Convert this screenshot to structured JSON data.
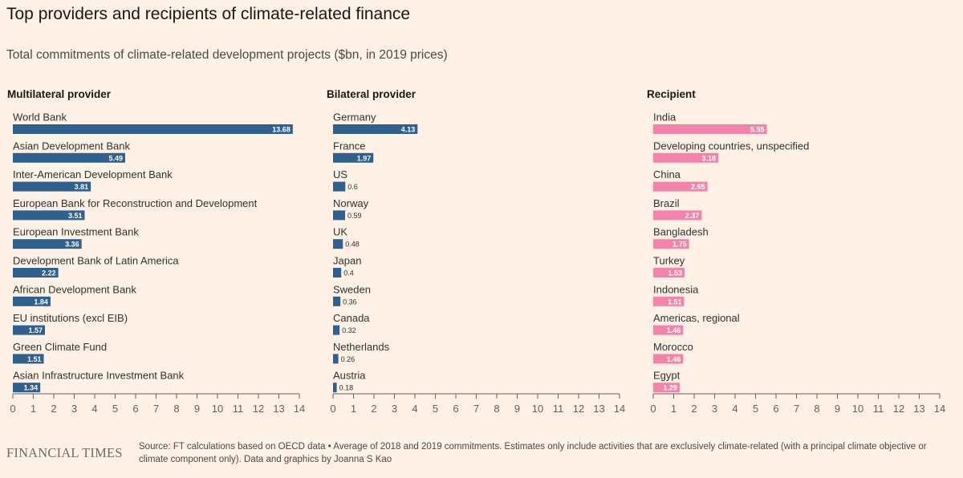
{
  "title": "Top providers and recipients of climate-related finance",
  "subtitle": "Total commitments of climate-related development projects ($bn, in 2019 prices)",
  "logo": "FINANCIAL TIMES",
  "source": "Source: FT calculations based on OECD data • Average of 2018 and 2019 commitments. Estimates only include activities that are exclusively climate-related (with a principal climate objective or climate component only). Data and graphics by Joanna S Kao",
  "chart_data": [
    {
      "type": "bar",
      "orientation": "horizontal",
      "title": "Multilateral provider",
      "color": "#30618e",
      "xlim": [
        0,
        14
      ],
      "xticks": [
        0,
        1,
        2,
        3,
        4,
        5,
        6,
        7,
        8,
        9,
        10,
        11,
        12,
        13,
        14
      ],
      "categories": [
        "World Bank",
        "Asian Development Bank",
        "Inter-American Development Bank",
        "European Bank for Reconstruction and Development",
        "European Investment Bank",
        "Development Bank of Latin America",
        "African Development Bank",
        "EU institutions (excl EIB)",
        "Green Climate Fund",
        "Asian Infrastructure Investment Bank"
      ],
      "values": [
        13.68,
        5.49,
        3.81,
        3.51,
        3.36,
        2.22,
        1.84,
        1.57,
        1.51,
        1.34
      ],
      "labels": [
        "13.68",
        "5.49",
        "3.81",
        "3.51",
        "3.36",
        "2.22",
        "1.84",
        "1.57",
        "1.51",
        "1.34"
      ]
    },
    {
      "type": "bar",
      "orientation": "horizontal",
      "title": "Bilateral provider",
      "color": "#30618e",
      "xlim": [
        0,
        14
      ],
      "xticks": [
        0,
        1,
        2,
        3,
        4,
        5,
        6,
        7,
        8,
        9,
        10,
        11,
        12,
        13,
        14
      ],
      "categories": [
        "Germany",
        "France",
        "US",
        "Norway",
        "UK",
        "Japan",
        "Sweden",
        "Canada",
        "Netherlands",
        "Austria"
      ],
      "values": [
        4.13,
        1.97,
        0.6,
        0.59,
        0.48,
        0.4,
        0.36,
        0.32,
        0.26,
        0.18
      ],
      "labels": [
        "4.13",
        "1.97",
        "0.6",
        "0.59",
        "0.48",
        "0.4",
        "0.36",
        "0.32",
        "0.26",
        "0.18"
      ]
    },
    {
      "type": "bar",
      "orientation": "horizontal",
      "title": "Recipient",
      "color": "#f383a8",
      "xlim": [
        0,
        14
      ],
      "xticks": [
        0,
        1,
        2,
        3,
        4,
        5,
        6,
        7,
        8,
        9,
        10,
        11,
        12,
        13,
        14
      ],
      "categories": [
        "India",
        "Developing countries, unspecified",
        "China",
        "Brazil",
        "Bangladesh",
        "Turkey",
        "Indonesia",
        "Americas, regional",
        "Morocco",
        "Egypt"
      ],
      "values": [
        5.55,
        3.18,
        2.65,
        2.37,
        1.75,
        1.53,
        1.51,
        1.46,
        1.46,
        1.29
      ],
      "labels": [
        "5.55",
        "3.18",
        "2.65",
        "2.37",
        "1.75",
        "1.53",
        "1.51",
        "1.46",
        "1.46",
        "1.29"
      ]
    }
  ]
}
